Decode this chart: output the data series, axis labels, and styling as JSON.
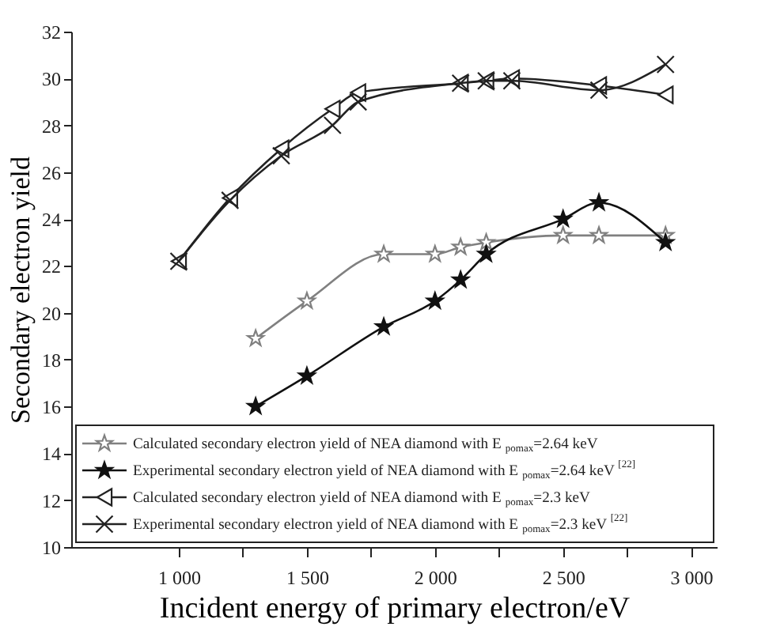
{
  "chart_data": {
    "type": "line",
    "xlabel": "Incident energy of primary electron/eV",
    "ylabel": "Secondary electron yield",
    "xlim": [
      580,
      3100
    ],
    "xticks": [
      {
        "value": 1000,
        "label": "1 000"
      },
      {
        "value": 1250,
        "label": null
      },
      {
        "value": 1500,
        "label": "1 500"
      },
      {
        "value": 1750,
        "label": null
      },
      {
        "value": 2000,
        "label": "2 000"
      },
      {
        "value": 2250,
        "label": null
      },
      {
        "value": 2500,
        "label": "2 500"
      },
      {
        "value": 2750,
        "label": null
      },
      {
        "value": 3000,
        "label": "3 000"
      }
    ],
    "ylim": [
      10,
      32
    ],
    "yticks": [
      10,
      12,
      14,
      16,
      18,
      20,
      22,
      24,
      26,
      28,
      30,
      32
    ],
    "grid": false,
    "legend": "bottom left",
    "series": [
      {
        "name": "Calculated secondary electron yield of NEA diamond with  E$_{pomax}$=2.64 keV",
        "color": "#808080",
        "marker": "star",
        "x": [
          1300,
          1500,
          1800,
          2000,
          2100,
          2200,
          2500,
          2640,
          2900
        ],
        "values": [
          18.9,
          20.5,
          22.5,
          22.5,
          22.8,
          23.0,
          23.3,
          23.3,
          23.3
        ]
      },
      {
        "name": "Experimental secondary electron yield of NEA diamond with  E$_{pomax}$=2.64 keV $^{[22]}$",
        "color": "#111111",
        "marker": "star",
        "x": [
          1300,
          1500,
          1800,
          2000,
          2100,
          2200,
          2500,
          2640,
          2900
        ],
        "values": [
          16.0,
          17.3,
          19.4,
          20.5,
          21.4,
          22.5,
          24.0,
          24.7,
          23.0
        ]
      },
      {
        "name": "Calculated secondary electron yield of NEA diamond with  E$_{pomax}$=2.3 keV",
        "color": "#222222",
        "marker": "triangle",
        "x": [
          1000,
          1200,
          1400,
          1600,
          1700,
          2100,
          2200,
          2300,
          2640,
          2900
        ],
        "values": [
          22.2,
          24.9,
          27.0,
          28.7,
          29.4,
          29.8,
          29.9,
          30.0,
          29.7,
          29.3
        ]
      },
      {
        "name": "Experimental secondary electron yield of NEA diamond with  E$_{pomax}$=2.3 keV $^{[22]}$",
        "color": "#222222",
        "marker": "cross",
        "x": [
          1000,
          1200,
          1400,
          1600,
          1700,
          2100,
          2200,
          2300,
          2640,
          2900
        ],
        "values": [
          22.2,
          24.8,
          26.7,
          28.0,
          29.0,
          29.8,
          29.9,
          29.9,
          29.5,
          30.6
        ]
      }
    ]
  }
}
